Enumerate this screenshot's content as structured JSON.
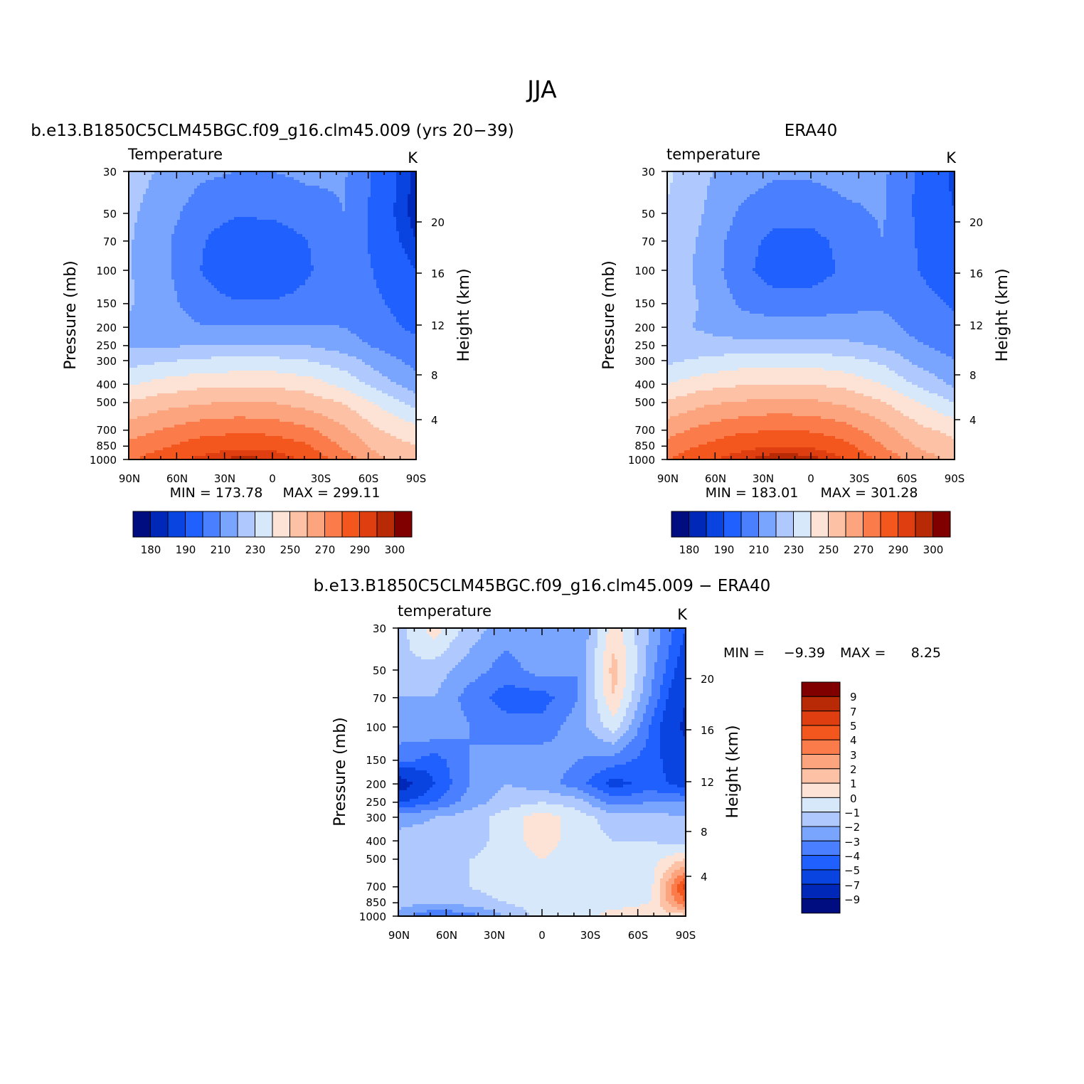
{
  "figure": {
    "title": "JJA"
  },
  "axes": {
    "x_tick_labels": [
      "90N",
      "60N",
      "30N",
      "0",
      "30S",
      "60S",
      "90S"
    ],
    "pressure_label": "Pressure (mb)",
    "height_label": "Height (km)",
    "pressure_ticks": [
      30,
      50,
      70,
      100,
      150,
      200,
      250,
      300,
      400,
      500,
      700,
      850,
      1000
    ],
    "height_ticks": [
      4,
      8,
      12,
      16,
      20
    ]
  },
  "panels": {
    "model": {
      "title": "b.e13.B1850C5CLM45BGC.f09_g16.clm45.009 (yrs 20-39)",
      "variable": "Temperature",
      "units": "K",
      "min_text": "MIN = 173.78",
      "max_text": "MAX = 299.11"
    },
    "obs": {
      "title": "ERA40",
      "variable": "temperature",
      "units": "K",
      "min_text": "MIN = 183.01",
      "max_text": "MAX = 301.28"
    },
    "diff": {
      "title": "b.e13.B1850C5CLM45BGC.f09_g16.clm45.009 - ERA40",
      "variable": "temperature",
      "units": "K",
      "min_label": "MIN =",
      "min_value": "-9.39",
      "max_label": "MAX =",
      "max_value": "8.25"
    }
  },
  "colorbars": {
    "temperature_labels": [
      "180",
      "190",
      "210",
      "230",
      "250",
      "270",
      "290",
      "300"
    ],
    "temperature_levels": [
      180,
      185,
      190,
      200,
      210,
      220,
      230,
      240,
      250,
      260,
      270,
      280,
      290,
      295,
      300
    ],
    "diff_labels": [
      "9",
      "7",
      "5",
      "4",
      "3",
      "2",
      "1",
      "0",
      "-1",
      "-2",
      "-3",
      "-4",
      "-5",
      "-7",
      "-9"
    ],
    "diff_levels": [
      -9,
      -7,
      -5,
      -4,
      -3,
      -2,
      -1,
      0,
      1,
      2,
      3,
      4,
      5,
      7,
      9
    ],
    "colors": [
      "#000d80",
      "#0028b8",
      "#0a44e0",
      "#2060ff",
      "#4a80ff",
      "#7aa5ff",
      "#afc9ff",
      "#d8e8fb",
      "#fde3d5",
      "#fdc2a6",
      "#fca47d",
      "#fb7c4a",
      "#f4571e",
      "#de3e10",
      "#b82905",
      "#800000"
    ]
  },
  "chart_data": [
    {
      "type": "heatmap",
      "title": "b.e13.B1850C5CLM45BGC.f09_g16.clm45.009 (yrs 20-39)",
      "variable": "Temperature",
      "units": "K",
      "x": [
        "90N",
        "60N",
        "30N",
        "0",
        "30S",
        "60S",
        "90S"
      ],
      "y_pressure_mb": [
        30,
        50,
        70,
        100,
        150,
        200,
        250,
        300,
        400,
        500,
        700,
        850,
        1000
      ],
      "min": 173.78,
      "max": 299.11,
      "levels": [
        180,
        185,
        190,
        200,
        210,
        220,
        230,
        240,
        250,
        260,
        270,
        280,
        290,
        295,
        300
      ],
      "values": [
        [
          225,
          218,
          212,
          210,
          210,
          212,
          211,
          196,
          183
        ],
        [
          222,
          214,
          205,
          201,
          202,
          206,
          210,
          195,
          182
        ],
        [
          221,
          212,
          201,
          193,
          193,
          200,
          207,
          196,
          185
        ],
        [
          221,
          212,
          200,
          192,
          192,
          199,
          207,
          198,
          190
        ],
        [
          221,
          214,
          204,
          201,
          201,
          203,
          206,
          201,
          195
        ],
        [
          218,
          215,
          211,
          211,
          211,
          211,
          210,
          203,
          198
        ],
        [
          219,
          219,
          220,
          220,
          220,
          220,
          215,
          208,
          203
        ],
        [
          226,
          229,
          232,
          233,
          233,
          230,
          225,
          214,
          207
        ],
        [
          239,
          244,
          247,
          248,
          248,
          245,
          237,
          225,
          214
        ],
        [
          251,
          256,
          259,
          261,
          260,
          256,
          249,
          238,
          226
        ],
        [
          265,
          271,
          276,
          278,
          277,
          272,
          262,
          250,
          244
        ],
        [
          273,
          279,
          285,
          288,
          287,
          281,
          268,
          256,
          250
        ],
        [
          279,
          286,
          292,
          297,
          296,
          288,
          275,
          262,
          255
        ]
      ]
    },
    {
      "type": "heatmap",
      "title": "ERA40",
      "variable": "temperature",
      "units": "K",
      "x": [
        "90N",
        "60N",
        "30N",
        "0",
        "30S",
        "60S",
        "90S"
      ],
      "y_pressure_mb": [
        30,
        50,
        70,
        100,
        150,
        200,
        250,
        300,
        400,
        500,
        700,
        850,
        1000
      ],
      "min": 183.01,
      "max": 301.28,
      "levels": [
        180,
        185,
        190,
        200,
        210,
        220,
        230,
        240,
        250,
        260,
        270,
        280,
        290,
        295,
        300
      ],
      "values": [
        [
          232,
          222,
          215,
          212,
          212,
          214,
          212,
          198,
          188
        ],
        [
          229,
          220,
          209,
          203,
          203,
          208,
          211,
          198,
          190
        ],
        [
          228,
          218,
          205,
          197,
          197,
          203,
          210,
          199,
          192
        ],
        [
          227,
          217,
          204,
          194,
          195,
          202,
          209,
          200,
          194
        ],
        [
          226,
          219,
          209,
          205,
          205,
          207,
          208,
          203,
          199
        ],
        [
          222,
          219,
          214,
          214,
          214,
          215,
          214,
          206,
          202
        ],
        [
          222,
          223,
          224,
          224,
          224,
          222,
          219,
          211,
          206
        ],
        [
          228,
          232,
          235,
          236,
          236,
          233,
          228,
          217,
          210
        ],
        [
          240,
          246,
          249,
          250,
          250,
          247,
          240,
          228,
          218
        ],
        [
          252,
          258,
          261,
          263,
          262,
          258,
          251,
          240,
          230
        ],
        [
          266,
          273,
          278,
          280,
          279,
          274,
          264,
          253,
          247
        ],
        [
          274,
          281,
          287,
          290,
          289,
          283,
          270,
          259,
          253
        ],
        [
          280,
          288,
          294,
          299,
          298,
          290,
          277,
          265,
          258
        ]
      ]
    },
    {
      "type": "heatmap",
      "title": "b.e13.B1850C5CLM45BGC.f09_g16.clm45.009 - ERA40",
      "variable": "temperature",
      "units": "K",
      "x": [
        "90N",
        "60N",
        "30N",
        "0",
        "30S",
        "60S",
        "90S"
      ],
      "y_pressure_mb": [
        30,
        50,
        70,
        100,
        150,
        200,
        250,
        300,
        400,
        500,
        700,
        850,
        1000
      ],
      "min": -9.39,
      "max": 8.25,
      "levels": [
        -9,
        -7,
        -5,
        -4,
        -3,
        -2,
        -1,
        0,
        1,
        2,
        3,
        4,
        5,
        7,
        9
      ],
      "values": [
        [
          -1.5,
          0.5,
          -1.5,
          -2.5,
          -2.0,
          -3.0,
          0.5,
          -2.0,
          -5.0
        ],
        [
          -1.0,
          -1.5,
          -2.5,
          -3.5,
          -2.5,
          -3.0,
          1.5,
          -2.5,
          -6.0
        ],
        [
          -2.0,
          -2.0,
          -3.5,
          -4.5,
          -4.5,
          -3.0,
          1.0,
          -3.0,
          -7.0
        ],
        [
          -2.5,
          -2.0,
          -3.0,
          -3.5,
          -3.5,
          -2.5,
          -0.5,
          -4.0,
          -7.5
        ],
        [
          -3.5,
          -4.5,
          -3.0,
          -2.5,
          -2.5,
          -3.0,
          -3.5,
          -4.5,
          -6.0
        ],
        [
          -8.5,
          -5.0,
          -3.0,
          -2.0,
          -2.5,
          -3.5,
          -5.5,
          -4.5,
          -5.5
        ],
        [
          -5.0,
          -4.0,
          -2.5,
          -1.5,
          -1.0,
          -1.5,
          -3.5,
          -3.0,
          -3.0
        ],
        [
          -2.5,
          -2.0,
          -1.5,
          -0.5,
          0.5,
          -0.5,
          -1.5,
          -1.5,
          -2.0
        ],
        [
          -1.5,
          -1.5,
          -1.5,
          -0.5,
          0.5,
          -0.5,
          -1.0,
          -1.0,
          -1.5
        ],
        [
          -1.0,
          -1.5,
          -1.0,
          -0.5,
          0.0,
          -0.5,
          -1.0,
          -0.5,
          1.0
        ],
        [
          -1.5,
          -1.5,
          -1.0,
          -0.5,
          -0.5,
          -0.5,
          -1.0,
          -0.5,
          5.5
        ],
        [
          -1.5,
          -2.0,
          -1.5,
          -1.0,
          -0.5,
          -0.5,
          -0.5,
          0.0,
          4.0
        ],
        [
          -2.5,
          -4.0,
          -3.5,
          -2.0,
          -0.5,
          -0.5,
          0.5,
          0.5,
          0.5
        ]
      ]
    }
  ]
}
